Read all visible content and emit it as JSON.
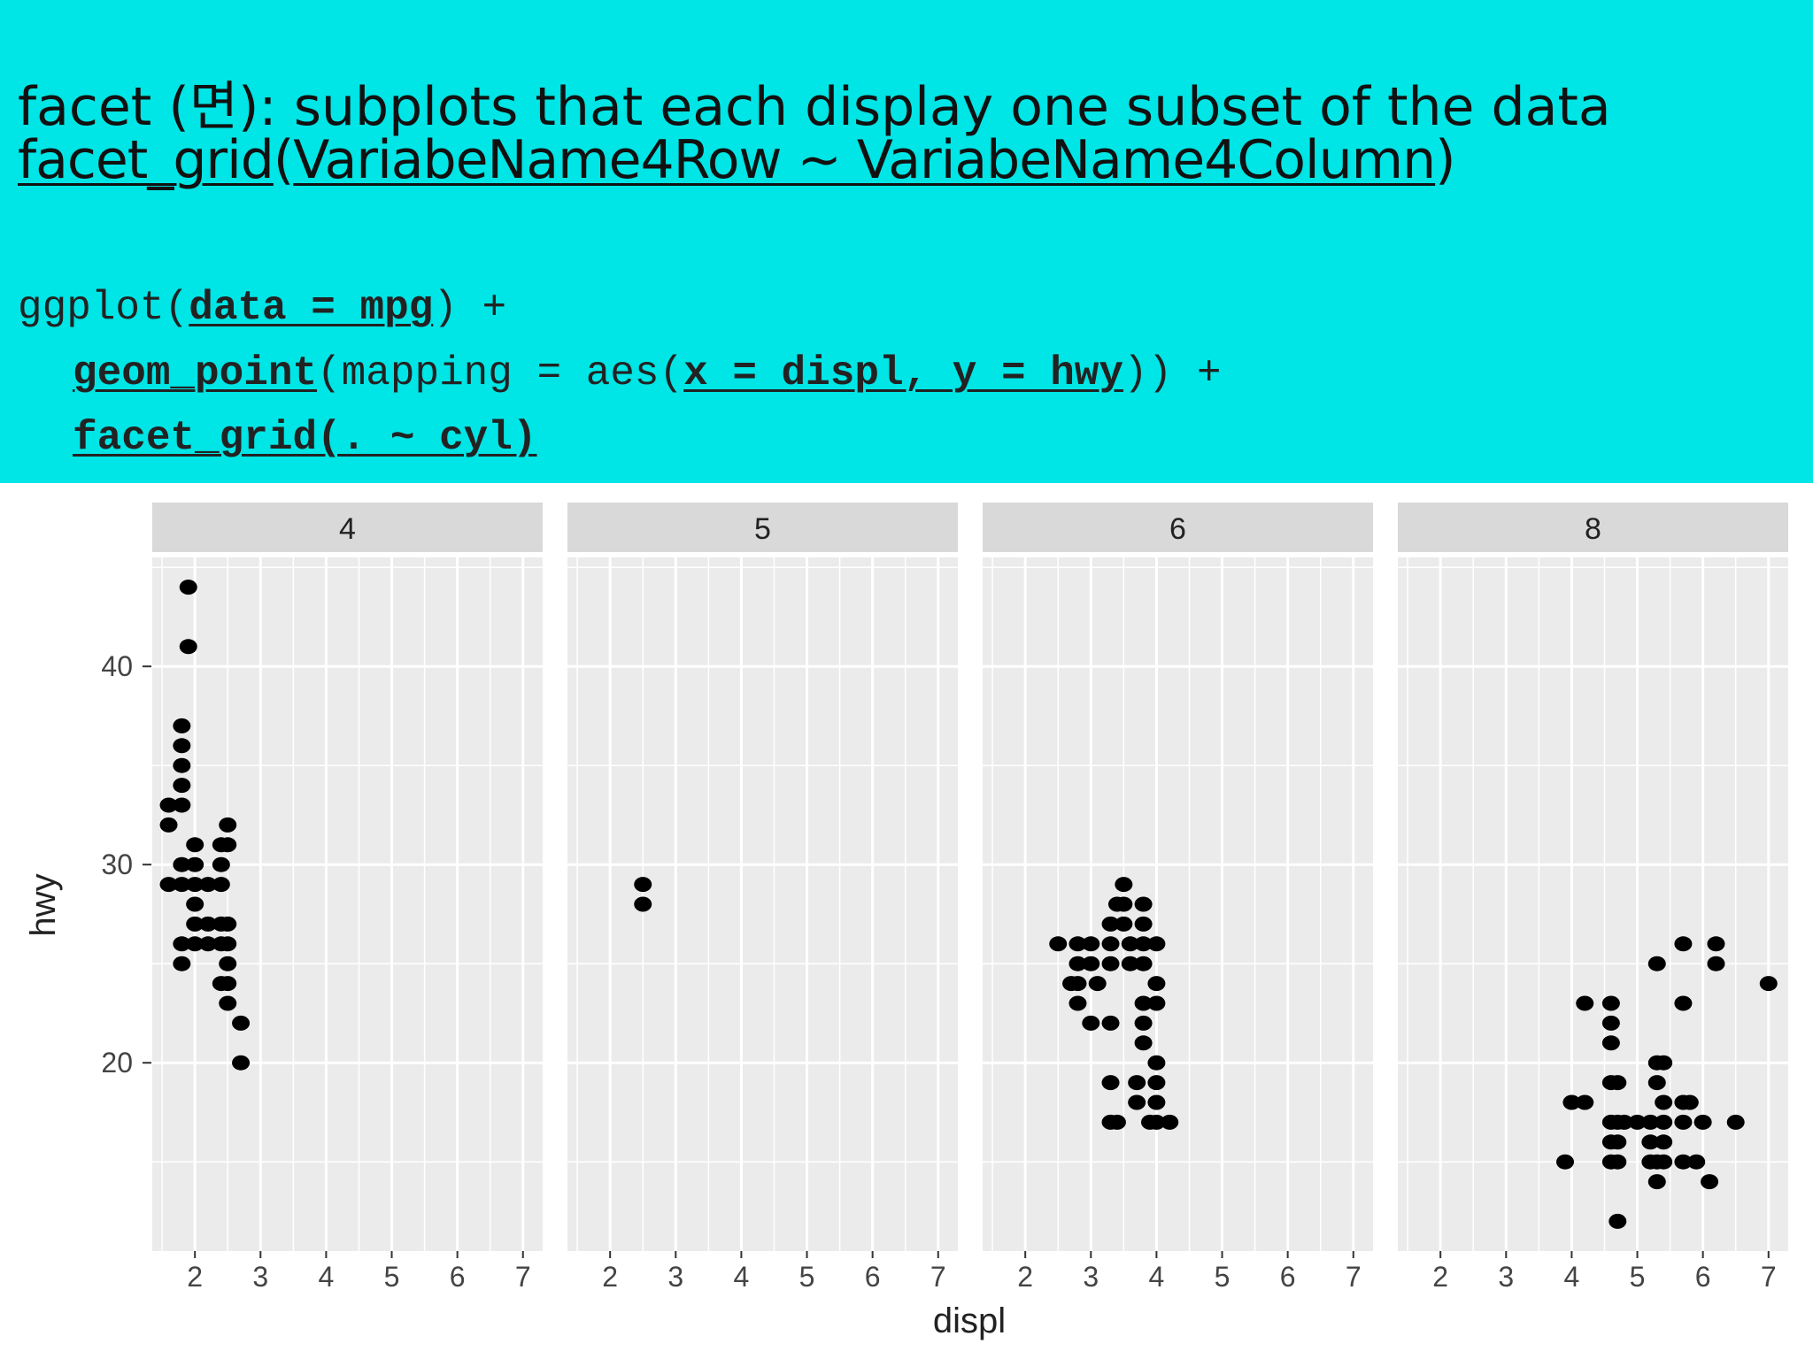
{
  "slide": {
    "title_prefix": "facet (",
    "title_glyph": "면",
    "title_suffix": "): subplots that each display one subset of the data",
    "facet_fn": "facet_grid",
    "facet_open": "(",
    "facet_args": "VariabeName4Row ~ VariabeName4Column",
    "facet_close": ")",
    "code": {
      "l1_a": "ggplot(",
      "l1_b": "data = mpg",
      "l1_c": ") +",
      "l2_a": "geom_point",
      "l2_b": "(mapping = aes(",
      "l2_c": "x = displ, y = hwy",
      "l2_d": ")) +",
      "l3_a": "facet_grid(. ~ cyl)"
    }
  },
  "colors": {
    "header_bg": "#00e5e5",
    "panel_bg": "#ebebeb",
    "strip_bg": "#d9d9d9",
    "grid": "#ffffff",
    "point": "#000000"
  },
  "chart_data": {
    "type": "scatter",
    "xlabel": "displ",
    "ylabel": "hwy",
    "xlim": [
      1.35,
      7.3
    ],
    "ylim": [
      10.5,
      45.5
    ],
    "x_ticks": [
      2,
      3,
      4,
      5,
      6,
      7
    ],
    "y_ticks": [
      20,
      30,
      40
    ],
    "grid": true,
    "facets": [
      {
        "label": "4",
        "points": [
          [
            1.9,
            44
          ],
          [
            1.9,
            41
          ],
          [
            1.8,
            37
          ],
          [
            1.8,
            36
          ],
          [
            1.8,
            35
          ],
          [
            1.8,
            34
          ],
          [
            1.6,
            33
          ],
          [
            1.8,
            33
          ],
          [
            1.6,
            32
          ],
          [
            2.5,
            32
          ],
          [
            2.0,
            31
          ],
          [
            2.4,
            31
          ],
          [
            2.5,
            31
          ],
          [
            1.8,
            30
          ],
          [
            2.0,
            30
          ],
          [
            2.4,
            30
          ],
          [
            1.6,
            29
          ],
          [
            1.8,
            29
          ],
          [
            2.0,
            29
          ],
          [
            2.2,
            29
          ],
          [
            2.4,
            29
          ],
          [
            2.0,
            28
          ],
          [
            2.0,
            27
          ],
          [
            2.2,
            27
          ],
          [
            2.4,
            27
          ],
          [
            2.5,
            27
          ],
          [
            1.8,
            26
          ],
          [
            2.0,
            26
          ],
          [
            2.2,
            26
          ],
          [
            2.4,
            26
          ],
          [
            2.5,
            26
          ],
          [
            1.8,
            25
          ],
          [
            2.5,
            25
          ],
          [
            2.4,
            24
          ],
          [
            2.5,
            24
          ],
          [
            2.5,
            23
          ],
          [
            2.7,
            22
          ],
          [
            2.7,
            20
          ]
        ]
      },
      {
        "label": "5",
        "points": [
          [
            2.5,
            29
          ],
          [
            2.5,
            28
          ]
        ]
      },
      {
        "label": "6",
        "points": [
          [
            3.5,
            29
          ],
          [
            3.4,
            28
          ],
          [
            3.5,
            28
          ],
          [
            3.8,
            28
          ],
          [
            3.3,
            27
          ],
          [
            3.5,
            27
          ],
          [
            3.8,
            27
          ],
          [
            2.5,
            26
          ],
          [
            2.8,
            26
          ],
          [
            3.0,
            26
          ],
          [
            3.3,
            26
          ],
          [
            3.6,
            26
          ],
          [
            3.8,
            26
          ],
          [
            4.0,
            26
          ],
          [
            2.8,
            25
          ],
          [
            3.0,
            25
          ],
          [
            3.3,
            25
          ],
          [
            3.6,
            25
          ],
          [
            3.8,
            25
          ],
          [
            2.7,
            24
          ],
          [
            2.8,
            24
          ],
          [
            3.1,
            24
          ],
          [
            4.0,
            24
          ],
          [
            2.8,
            23
          ],
          [
            3.8,
            23
          ],
          [
            4.0,
            23
          ],
          [
            3.0,
            22
          ],
          [
            3.3,
            22
          ],
          [
            3.8,
            22
          ],
          [
            3.8,
            21
          ],
          [
            4.0,
            20
          ],
          [
            3.3,
            19
          ],
          [
            3.7,
            19
          ],
          [
            4.0,
            19
          ],
          [
            3.7,
            18
          ],
          [
            4.0,
            18
          ],
          [
            3.3,
            17
          ],
          [
            3.4,
            17
          ],
          [
            3.9,
            17
          ],
          [
            4.0,
            17
          ],
          [
            4.2,
            17
          ]
        ]
      },
      {
        "label": "8",
        "points": [
          [
            5.7,
            26
          ],
          [
            6.2,
            26
          ],
          [
            5.3,
            25
          ],
          [
            6.2,
            25
          ],
          [
            7.0,
            24
          ],
          [
            4.2,
            23
          ],
          [
            4.6,
            23
          ],
          [
            5.7,
            23
          ],
          [
            4.6,
            22
          ],
          [
            4.6,
            21
          ],
          [
            5.3,
            20
          ],
          [
            5.4,
            20
          ],
          [
            4.6,
            19
          ],
          [
            4.7,
            19
          ],
          [
            5.3,
            19
          ],
          [
            4.0,
            18
          ],
          [
            4.2,
            18
          ],
          [
            5.4,
            18
          ],
          [
            5.7,
            18
          ],
          [
            5.8,
            18
          ],
          [
            4.6,
            17
          ],
          [
            4.7,
            17
          ],
          [
            4.8,
            17
          ],
          [
            5.0,
            17
          ],
          [
            5.2,
            17
          ],
          [
            5.4,
            17
          ],
          [
            5.7,
            17
          ],
          [
            6.0,
            17
          ],
          [
            6.5,
            17
          ],
          [
            4.6,
            16
          ],
          [
            4.7,
            16
          ],
          [
            5.2,
            16
          ],
          [
            5.4,
            16
          ],
          [
            3.9,
            15
          ],
          [
            4.6,
            15
          ],
          [
            4.7,
            15
          ],
          [
            5.2,
            15
          ],
          [
            5.3,
            15
          ],
          [
            5.4,
            15
          ],
          [
            5.7,
            15
          ],
          [
            5.9,
            15
          ],
          [
            5.3,
            14
          ],
          [
            6.1,
            14
          ],
          [
            4.7,
            12
          ]
        ]
      }
    ]
  }
}
